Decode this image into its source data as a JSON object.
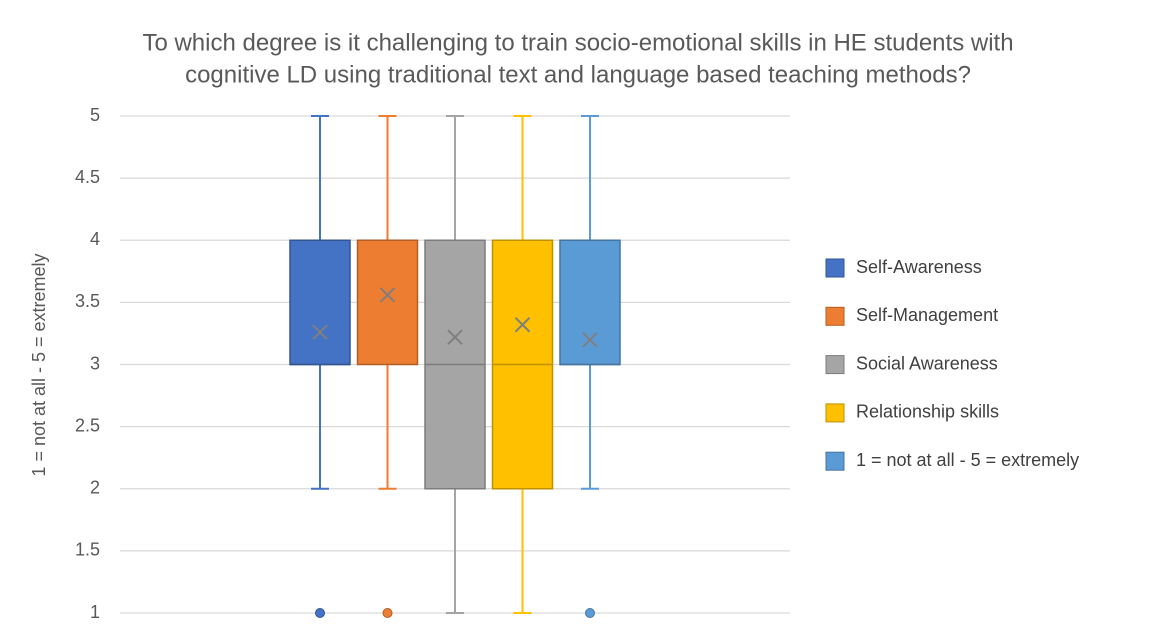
{
  "chart_data": {
    "type": "box",
    "title": [
      "To which degree is it challenging to train socio-emotional skills in HE students with",
      "cognitive LD using traditional text and language based teaching methods?"
    ],
    "y_label": "1 = not at all - 5 = extremely",
    "ylim": [
      1,
      5
    ],
    "yticks": [
      1,
      1.5,
      2,
      2.5,
      3,
      3.5,
      4,
      4.5,
      5
    ],
    "grid": true,
    "legend": "right",
    "series": [
      {
        "name": "Self-Awareness",
        "color": "#4472c4",
        "min": 2,
        "q1": 3,
        "median": 3,
        "q3": 4,
        "max": 5,
        "mean": 3.26,
        "outliers": [
          1
        ]
      },
      {
        "name": "Self-Management",
        "color": "#ed7d31",
        "min": 2,
        "q1": 3,
        "median": 4,
        "q3": 4,
        "max": 5,
        "mean": 3.56,
        "outliers": [
          1
        ]
      },
      {
        "name": "Social Awareness",
        "color": "#a5a5a5",
        "min": 1,
        "q1": 2,
        "median": 3,
        "q3": 4,
        "max": 5,
        "mean": 3.22,
        "outliers": []
      },
      {
        "name": "Relationship skills",
        "color": "#ffc000",
        "min": 1,
        "q1": 2,
        "median": 3,
        "q3": 4,
        "max": 5,
        "mean": 3.32,
        "outliers": []
      },
      {
        "name": "1 = not at all - 5 = extremely",
        "color": "#5b9bd5",
        "min": 2,
        "q1": 3,
        "median": 3,
        "q3": 4,
        "max": 5,
        "mean": 3.2,
        "outliers": [
          1
        ]
      }
    ]
  }
}
